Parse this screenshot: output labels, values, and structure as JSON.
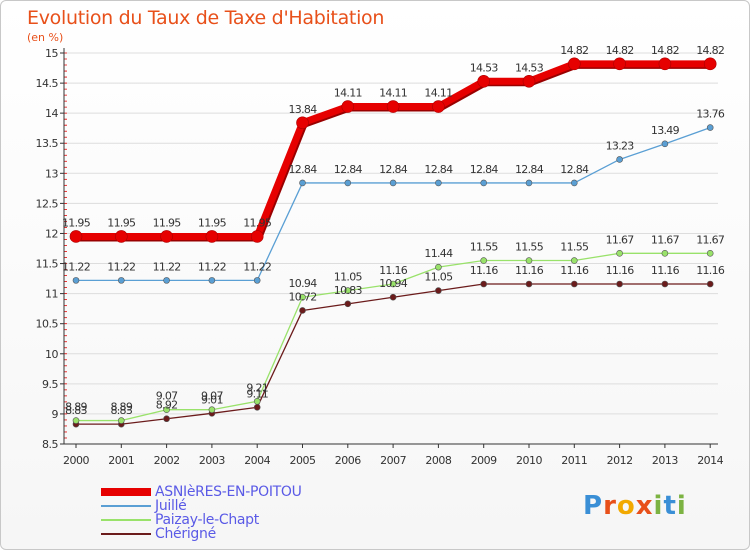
{
  "header": {
    "title": "Evolution du Taux de Taxe d'Habitation",
    "subtitle": "(en %)"
  },
  "logo": {
    "letters": [
      "P",
      "r",
      "o",
      "x",
      "i",
      "t",
      "i"
    ]
  },
  "colors": {
    "title": "#e8501a",
    "axis": "#333333",
    "grid": "#dddddd",
    "legend_text": "#5a5ae6"
  },
  "chart_data": {
    "type": "line",
    "title": "Evolution du Taux de Taxe d'Habitation",
    "ylabel": "(en %)",
    "xlabel": "",
    "x": [
      "2000",
      "2001",
      "2002",
      "2003",
      "2004",
      "2005",
      "2006",
      "2007",
      "2008",
      "2009",
      "2010",
      "2011",
      "2012",
      "2013",
      "2014"
    ],
    "ylim": [
      8.5,
      15
    ],
    "yticks": [
      "8.5",
      "9",
      "9.5",
      "10",
      "10.5",
      "11",
      "11.5",
      "12",
      "12.5",
      "13",
      "13.5",
      "14",
      "14.5",
      "15"
    ],
    "grid": "horizontal",
    "legend_position": "bottom-left",
    "series": [
      {
        "name": "ASNIèRES-EN-POITOU",
        "color": "#e60000",
        "values": [
          11.95,
          11.95,
          11.95,
          11.95,
          11.95,
          13.84,
          14.11,
          14.11,
          14.11,
          14.53,
          14.53,
          14.82,
          14.82,
          14.82,
          14.82
        ],
        "labels": [
          "11.95",
          "11.95",
          "11.95",
          "11.95",
          "11.95",
          "13.84",
          "14.11",
          "14.11",
          "14.11",
          "14.53",
          "14.53",
          "14.82",
          "14.82",
          "14.82",
          "14.82"
        ]
      },
      {
        "name": "Juillé",
        "color": "#5a9fd4",
        "values": [
          11.22,
          11.22,
          11.22,
          11.22,
          11.22,
          12.84,
          12.84,
          12.84,
          12.84,
          12.84,
          12.84,
          12.84,
          13.23,
          13.49,
          13.76
        ],
        "labels": [
          "11.22",
          "11.22",
          "11.22",
          "11.22",
          "11.22",
          "12.84",
          "12.84",
          "12.84",
          "12.84",
          "12.84",
          "12.84",
          "12.84",
          "13.23",
          "13.49",
          "13.76"
        ]
      },
      {
        "name": "Paizay-le-Chapt",
        "color": "#99e26a",
        "values": [
          8.89,
          8.89,
          9.07,
          9.07,
          9.21,
          10.94,
          11.05,
          11.16,
          11.44,
          11.55,
          11.55,
          11.55,
          11.67,
          11.67,
          11.67
        ],
        "labels": [
          "8.89",
          "8.89",
          "9.07",
          "9.07",
          "9.21",
          "10.94",
          "11.05",
          "11.16",
          "11.44",
          "11.55",
          "11.55",
          "11.55",
          "11.67",
          "11.67",
          "11.67"
        ]
      },
      {
        "name": "Chérigné",
        "color": "#6b1b1b",
        "values": [
          8.83,
          8.83,
          8.92,
          9.01,
          9.11,
          10.72,
          10.83,
          10.94,
          11.05,
          11.16,
          11.16,
          11.16,
          11.16,
          11.16,
          11.16
        ],
        "labels": [
          "8.83",
          "8.83",
          "8.92",
          "9.01",
          "9.11",
          "10.72",
          "10.83",
          "10.94",
          "11.05",
          "11.16",
          "11.16",
          "11.16",
          "11.16",
          "11.16",
          "11.16"
        ]
      }
    ]
  }
}
